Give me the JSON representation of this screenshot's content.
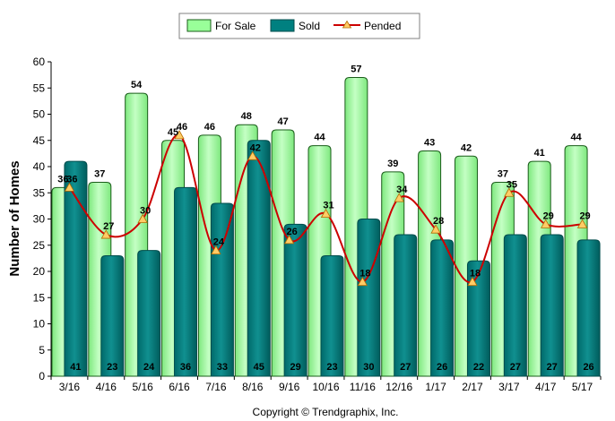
{
  "colors": {
    "for_sale_fill": "#99ff99",
    "for_sale_stroke": "#1a5c1a",
    "sold_fill": "#008080",
    "sold_stroke": "#004c4c",
    "pended_line": "#cc0000",
    "pended_marker": "#ffcc66"
  },
  "copyright": "Copyright © Trendgraphix, Inc.",
  "chart_data": {
    "type": "bar",
    "ylabel": "Number of Homes",
    "xlabel": "",
    "ylim": [
      0,
      60
    ],
    "yticks": [
      0,
      5,
      10,
      15,
      20,
      25,
      30,
      35,
      40,
      45,
      50,
      55,
      60
    ],
    "grid": false,
    "legend": "top-center",
    "categories": [
      "3/16",
      "4/16",
      "5/16",
      "6/16",
      "7/16",
      "8/16",
      "9/16",
      "10/16",
      "11/16",
      "12/16",
      "1/17",
      "2/17",
      "3/17",
      "4/17",
      "5/17"
    ],
    "series": [
      {
        "name": "For Sale",
        "type": "bar",
        "values": [
          36,
          37,
          54,
          45,
          46,
          48,
          47,
          44,
          57,
          39,
          43,
          42,
          37,
          41,
          44
        ]
      },
      {
        "name": "Sold",
        "type": "bar",
        "values": [
          41,
          23,
          24,
          36,
          33,
          45,
          29,
          23,
          30,
          27,
          26,
          22,
          27,
          27,
          26
        ]
      },
      {
        "name": "Pended",
        "type": "line",
        "values": [
          36,
          27,
          30,
          46,
          24,
          42,
          26,
          31,
          18,
          34,
          28,
          18,
          35,
          29,
          29
        ]
      }
    ]
  }
}
